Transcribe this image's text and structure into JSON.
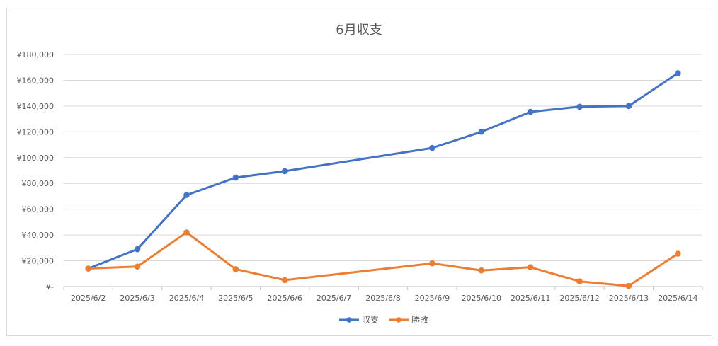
{
  "chart_data": {
    "type": "line",
    "title": "6月収支",
    "categories": [
      "2025/6/2",
      "2025/6/3",
      "2025/6/4",
      "2025/6/5",
      "2025/6/6",
      "2025/6/7",
      "2025/6/8",
      "2025/6/9",
      "2025/6/10",
      "2025/6/11",
      "2025/6/12",
      "2025/6/13",
      "2025/6/14"
    ],
    "series": [
      {
        "name": "収支",
        "color": "#4472c4",
        "values": [
          14000,
          29000,
          71000,
          84500,
          89500,
          null,
          null,
          107500,
          120000,
          135500,
          139500,
          140000,
          165500
        ],
        "connect_gaps": true
      },
      {
        "name": "勝敗",
        "color": "#ed7d31",
        "values": [
          14000,
          15500,
          42000,
          13500,
          5000,
          null,
          null,
          18000,
          12500,
          15000,
          4000,
          500,
          25500
        ],
        "connect_gaps": true
      }
    ],
    "ylim": [
      0,
      180000
    ],
    "yticks": [
      {
        "value": 0,
        "label": "¥-"
      },
      {
        "value": 20000,
        "label": "¥20,000"
      },
      {
        "value": 40000,
        "label": "¥40,000"
      },
      {
        "value": 60000,
        "label": "¥60,000"
      },
      {
        "value": 80000,
        "label": "¥80,000"
      },
      {
        "value": 100000,
        "label": "¥100,000"
      },
      {
        "value": 120000,
        "label": "¥120,000"
      },
      {
        "value": 140000,
        "label": "¥140,000"
      },
      {
        "value": 160000,
        "label": "¥160,000"
      },
      {
        "value": 180000,
        "label": "¥180,000"
      }
    ],
    "grid": true,
    "legend_position": "bottom"
  }
}
